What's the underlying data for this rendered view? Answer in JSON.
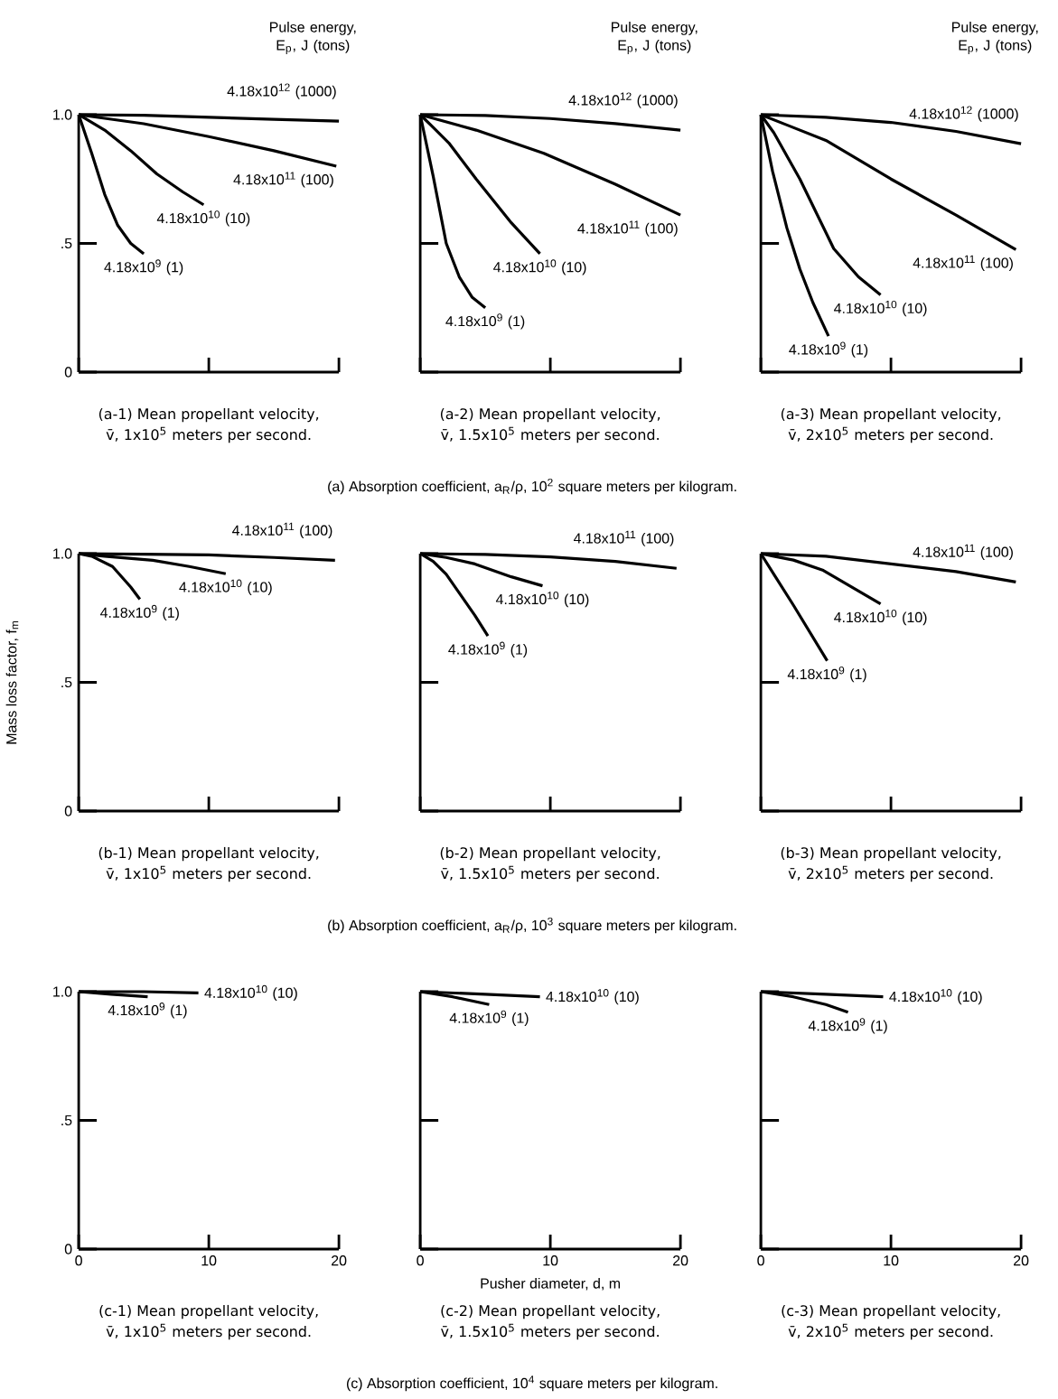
{
  "chart_data": [
    {
      "type": "line",
      "legend_title": "Pulse energy, E$_{p}$, J (tons)",
      "xlim": [
        0,
        20
      ],
      "ylim": [
        0,
        1
      ],
      "xticks": [
        {
          "value": 0,
          "label": null
        },
        {
          "value": 10,
          "label": null
        },
        {
          "value": 20,
          "label": null
        }
      ],
      "yticks": [
        0,
        {
          "value": 0.5,
          "label": ".5"
        },
        {
          "value": 1,
          "label": "1.0"
        }
      ],
      "tick_labels": "y",
      "annotations": [
        "(a-1) Mean propellant velocity,",
        "v̄, 1x10$^{5}$ meters per second.",
        "(a) Absorption coefficient, a$_{R}$/ρ, 10$^{2}$ square meters per kilogram."
      ],
      "series": [
        {
          "name": "4.18x10$^{12}$ (1000)",
          "x": [
            0,
            5,
            10,
            15,
            20
          ],
          "values": [
            1,
            0.998,
            0.99,
            0.982,
            0.975
          ]
        },
        {
          "name": "4.18x10$^{11}$ (100)",
          "x": [
            0,
            5,
            10,
            15,
            19.8
          ],
          "values": [
            1,
            0.965,
            0.915,
            0.86,
            0.8
          ]
        },
        {
          "name": "4.18x10$^{10}$ (10)",
          "x": [
            0,
            2,
            4,
            6,
            8,
            9.6
          ],
          "values": [
            1,
            0.94,
            0.86,
            0.77,
            0.7,
            0.65
          ]
        },
        {
          "name": "4.18x10$^{9}$ (1)",
          "x": [
            0,
            1,
            2,
            3,
            4,
            5
          ],
          "values": [
            1,
            0.85,
            0.69,
            0.57,
            0.5,
            0.46
          ]
        }
      ]
    },
    {
      "type": "line",
      "legend_title": "Pulse energy, E$_{p}$, J (tons)",
      "xlim": [
        0,
        20
      ],
      "ylim": [
        0,
        1
      ],
      "xticks": [
        {
          "value": 0,
          "label": null
        },
        {
          "value": 10,
          "label": null
        },
        {
          "value": 20,
          "label": null
        }
      ],
      "yticks": [
        {
          "value": 0,
          "label": null
        },
        {
          "value": 0.5,
          "label": null
        },
        {
          "value": 1,
          "label": null
        }
      ],
      "tick_labels": false,
      "annotations": [
        "(a-2) Mean propellant velocity,",
        "v̄, 1.5x10$^{5}$ meters per second."
      ],
      "series": [
        {
          "name": "4.18x10$^{12}$ (1000)",
          "x": [
            0,
            5,
            10,
            15,
            20
          ],
          "values": [
            1,
            0.997,
            0.985,
            0.965,
            0.94
          ]
        },
        {
          "name": "4.18x10$^{11}$ (100)",
          "x": [
            0,
            4.3,
            9.5,
            15,
            20
          ],
          "values": [
            1,
            0.94,
            0.85,
            0.73,
            0.61
          ]
        },
        {
          "name": "4.18x10$^{10}$ (10)",
          "x": [
            0,
            1,
            2.2,
            4.3,
            7,
            9.2
          ],
          "values": [
            1,
            0.95,
            0.89,
            0.75,
            0.58,
            0.46
          ]
        },
        {
          "name": "4.18x10$^{9}$ (1)",
          "x": [
            0,
            1,
            2,
            3,
            4,
            5
          ],
          "values": [
            1,
            0.76,
            0.5,
            0.37,
            0.29,
            0.25
          ]
        }
      ]
    },
    {
      "type": "line",
      "legend_title": "Pulse energy, E$_{p}$, J (tons)",
      "xlim": [
        0,
        20
      ],
      "ylim": [
        0,
        1
      ],
      "xticks": [
        {
          "value": 0,
          "label": null
        },
        {
          "value": 10,
          "label": null
        },
        {
          "value": 20,
          "label": null
        }
      ],
      "yticks": [
        {
          "value": 0,
          "label": null
        },
        {
          "value": 0.5,
          "label": null
        },
        {
          "value": 1,
          "label": null
        }
      ],
      "tick_labels": false,
      "annotations": [
        "(a-3) Mean propellant velocity,",
        "v̄, 2x10$^{5}$ meters per second."
      ],
      "series": [
        {
          "name": "4.18x10$^{12}$ (1000)",
          "x": [
            0,
            5,
            10,
            15,
            20
          ],
          "values": [
            1,
            0.99,
            0.97,
            0.935,
            0.887
          ]
        },
        {
          "name": "4.18x10$^{11}$ (100)",
          "x": [
            0,
            2,
            5,
            10,
            15,
            19.6
          ],
          "values": [
            1,
            0.96,
            0.9,
            0.75,
            0.61,
            0.476
          ]
        },
        {
          "name": "4.18x10$^{10}$ (10)",
          "x": [
            0,
            1,
            3,
            5.6,
            7.5,
            9.2
          ],
          "values": [
            1,
            0.93,
            0.75,
            0.48,
            0.37,
            0.3
          ]
        },
        {
          "name": "4.18x10$^{9}$ (1)",
          "x": [
            0,
            0.9,
            2,
            3,
            4,
            5.2
          ],
          "values": [
            1,
            0.78,
            0.56,
            0.4,
            0.27,
            0.14
          ]
        }
      ]
    },
    {
      "type": "line",
      "ylabel": "Mass loss factor, f$_{m}$",
      "xlim": [
        0,
        20
      ],
      "ylim": [
        0,
        1
      ],
      "xticks": [
        {
          "value": 0,
          "label": null
        },
        {
          "value": 10,
          "label": null
        },
        {
          "value": 20,
          "label": null
        }
      ],
      "yticks": [
        0,
        {
          "value": 0.5,
          "label": ".5"
        },
        {
          "value": 1,
          "label": "1.0"
        }
      ],
      "tick_labels": "y",
      "annotations": [
        "(b-1) Mean propellant velocity,",
        "v̄, 1x10$^{5}$ meters per second.",
        "(b) Absorption coefficient, a$_{R}$/ρ, 10$^{3}$ square meters per kilogram."
      ],
      "series": [
        {
          "name": "4.18x10$^{11}$ (100)",
          "x": [
            0,
            5,
            10,
            15,
            19.7
          ],
          "values": [
            1,
            0.998,
            0.995,
            0.985,
            0.974
          ]
        },
        {
          "name": "4.18x10$^{10}$ (10)",
          "x": [
            0,
            2,
            5.7,
            8.5,
            11.3
          ],
          "values": [
            1,
            0.99,
            0.974,
            0.95,
            0.922
          ]
        },
        {
          "name": "4.18x10$^{9}$ (1)",
          "x": [
            0,
            1,
            2.6,
            4,
            4.7
          ],
          "values": [
            1,
            0.99,
            0.95,
            0.87,
            0.823
          ]
        }
      ]
    },
    {
      "type": "line",
      "xlim": [
        0,
        20
      ],
      "ylim": [
        0,
        1
      ],
      "xticks": [
        {
          "value": 0,
          "label": null
        },
        {
          "value": 10,
          "label": null
        },
        {
          "value": 20,
          "label": null
        }
      ],
      "yticks": [
        {
          "value": 0,
          "label": null
        },
        {
          "value": 0.5,
          "label": null
        },
        {
          "value": 1,
          "label": null
        }
      ],
      "tick_labels": false,
      "annotations": [
        "(b-2) Mean propellant velocity,",
        "v̄, 1.5x10$^{5}$ meters per second."
      ],
      "series": [
        {
          "name": "4.18x10$^{11}$ (100)",
          "x": [
            0,
            5,
            10,
            15,
            19.7
          ],
          "values": [
            1,
            0.997,
            0.987,
            0.97,
            0.943
          ]
        },
        {
          "name": "4.18x10$^{10}$ (10)",
          "x": [
            0,
            2,
            4.2,
            7,
            9.4
          ],
          "values": [
            1,
            0.985,
            0.96,
            0.91,
            0.875
          ]
        },
        {
          "name": "4.18x10$^{9}$ (1)",
          "x": [
            0,
            1,
            2,
            3.1,
            4.2,
            5.2
          ],
          "values": [
            1,
            0.97,
            0.92,
            0.84,
            0.76,
            0.68
          ]
        }
      ]
    },
    {
      "type": "line",
      "xlim": [
        0,
        20
      ],
      "ylim": [
        0,
        1
      ],
      "xticks": [
        {
          "value": 0,
          "label": null
        },
        {
          "value": 10,
          "label": null
        },
        {
          "value": 20,
          "label": null
        }
      ],
      "yticks": [
        {
          "value": 0,
          "label": null
        },
        {
          "value": 0.5,
          "label": null
        },
        {
          "value": 1,
          "label": null
        }
      ],
      "tick_labels": false,
      "annotations": [
        "(b-3) Mean propellant velocity,",
        "v̄, 2x10$^{5}$ meters per second."
      ],
      "series": [
        {
          "name": "4.18x10$^{11}$ (100)",
          "x": [
            0,
            5,
            10,
            15,
            19.6
          ],
          "values": [
            1,
            0.99,
            0.96,
            0.93,
            0.89
          ]
        },
        {
          "name": "4.18x10$^{10}$ (10)",
          "x": [
            0,
            1,
            2.5,
            4.8,
            7,
            9.2
          ],
          "values": [
            1,
            0.99,
            0.975,
            0.935,
            0.87,
            0.805
          ]
        },
        {
          "name": "4.18x10$^{9}$ (1)",
          "x": [
            0,
            1,
            2.5,
            5.1
          ],
          "values": [
            1,
            0.92,
            0.8,
            0.584
          ]
        }
      ]
    },
    {
      "type": "line",
      "xlim": [
        0,
        20
      ],
      "ylim": [
        0,
        1
      ],
      "xticks": [
        0,
        10,
        20
      ],
      "yticks": [
        0,
        {
          "value": 0.5,
          "label": ".5"
        },
        {
          "value": 1,
          "label": "1.0"
        }
      ],
      "annotations": [
        "(c-1) Mean propellant velocity,",
        "v̄, 1x10$^{5}$ meters per second.",
        "(c) Absorption coefficient, 10$^{4}$ square meters per kilogram."
      ],
      "series": [
        {
          "name": "4.18x10$^{10}$ (10)",
          "x": [
            0,
            5,
            9.2
          ],
          "values": [
            1,
            1,
            0.995
          ]
        },
        {
          "name": "4.18x10$^{9}$ (1)",
          "x": [
            0,
            2.5,
            5.3
          ],
          "values": [
            1,
            0.99,
            0.98
          ]
        }
      ]
    },
    {
      "type": "line",
      "xlabel": "Pusher diameter, d, m",
      "xlim": [
        0,
        20
      ],
      "ylim": [
        0,
        1
      ],
      "xticks": [
        0,
        10,
        20
      ],
      "yticks": [
        {
          "value": 0,
          "label": null
        },
        {
          "value": 0.5,
          "label": null
        },
        {
          "value": 1,
          "label": null
        }
      ],
      "tick_labels": "x",
      "annotations": [
        "(c-2) Mean propellant velocity,",
        "v̄, 1.5x10$^{5}$ meters per second."
      ],
      "series": [
        {
          "name": "4.18x10$^{10}$ (10)",
          "x": [
            0,
            5,
            9.2
          ],
          "values": [
            1,
            0.99,
            0.98
          ]
        },
        {
          "name": "4.18x10$^{9}$ (1)",
          "x": [
            0,
            2.5,
            5.3
          ],
          "values": [
            1,
            0.98,
            0.95
          ]
        }
      ]
    },
    {
      "type": "line",
      "xlim": [
        0,
        20
      ],
      "ylim": [
        0,
        1
      ],
      "xticks": [
        0,
        10,
        20
      ],
      "yticks": [
        {
          "value": 0,
          "label": null
        },
        {
          "value": 0.5,
          "label": null
        },
        {
          "value": 1,
          "label": null
        }
      ],
      "tick_labels": "x",
      "annotations": [
        "(c-3) Mean propellant velocity,",
        "v̄, 2x10$^{5}$ meters per second."
      ],
      "series": [
        {
          "name": "4.18x10$^{10}$ (10)",
          "x": [
            0,
            5,
            9.4
          ],
          "values": [
            1,
            0.99,
            0.98
          ]
        },
        {
          "name": "4.18x10$^{9}$ (1)",
          "x": [
            0,
            2.5,
            5,
            6.7
          ],
          "values": [
            1,
            0.98,
            0.95,
            0.92
          ]
        }
      ]
    }
  ]
}
